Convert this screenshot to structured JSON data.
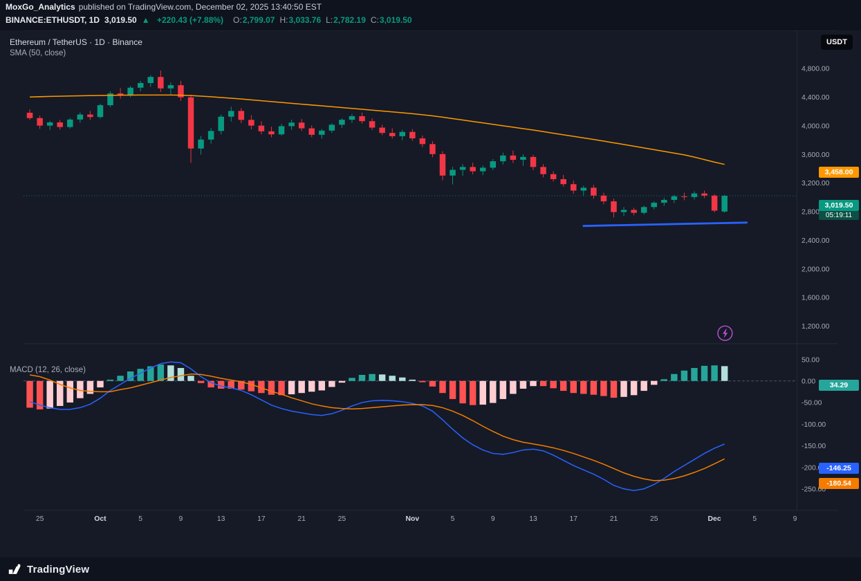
{
  "header": {
    "author": "MoxGo_Analytics",
    "published": "published on TradingView.com, December 02, 2025 13:40:50 EST"
  },
  "symbol_bar": {
    "symbol": "BINANCE:ETHUSDT, 1D",
    "last": "3,019.50",
    "direction": "▲",
    "change": "+220.43 (+7.88%)",
    "ohlc": [
      {
        "label": "O:",
        "value": "2,799.07"
      },
      {
        "label": "H:",
        "value": "3,033.76"
      },
      {
        "label": "L:",
        "value": "2,782.19"
      },
      {
        "label": "C:",
        "value": "3,019.50"
      }
    ]
  },
  "chart": {
    "title": "Ethereum / TetherUS · 1D · Binance",
    "sma_label": "SMA (50, close)",
    "macd_label": "MACD (12, 26, close)",
    "currency_button": "USDT",
    "badges": {
      "sma": "3,458.00",
      "last": "3,019.50",
      "countdown": "05:19:11",
      "macd_hist": "34.29",
      "macd_line": "-146.25",
      "macd_signal": "-180.54"
    },
    "colors": {
      "up": "#089981",
      "down": "#f23645",
      "sma": "#ff9800",
      "macd_line": "#2962ff",
      "signal_line": "#f57c00",
      "hist_pos_strong": "#26a69a",
      "hist_pos_weak": "#b2dfdb",
      "hist_neg_strong": "#ff5252",
      "hist_neg_weak": "#ffcdd2",
      "trendline": "#2962ff",
      "boost": "#c04fd4",
      "countdown_bg": "#0d4f44",
      "axis_text": "#a8adb8",
      "axis_text_major": "#d5d8dd"
    }
  },
  "chart_data": {
    "type": "candlestick",
    "title": "Ethereum / TetherUS · 1D · Binance",
    "interval": "1D",
    "legend": [
      "SMA (50, close)",
      "MACD (12, 26, close)"
    ],
    "ylim_price": [
      1050,
      4900
    ],
    "ylim_macd": [
      -280,
      60
    ],
    "grid": false,
    "last_price": 3019.5,
    "price_axis_ticks": [
      4800,
      4400,
      4000,
      3600,
      3200,
      2800,
      2400,
      2000,
      1600,
      1200
    ],
    "macd_axis_ticks": [
      50,
      0,
      -50,
      -100,
      -150,
      -200,
      -250
    ],
    "time_axis": [
      {
        "t": "25",
        "i": 1
      },
      {
        "t": "Oct",
        "i": 7,
        "major": true
      },
      {
        "t": "5",
        "i": 11
      },
      {
        "t": "9",
        "i": 15
      },
      {
        "t": "13",
        "i": 19
      },
      {
        "t": "17",
        "i": 23
      },
      {
        "t": "21",
        "i": 27
      },
      {
        "t": "25",
        "i": 31
      },
      {
        "t": "Nov",
        "i": 38,
        "major": true
      },
      {
        "t": "5",
        "i": 42
      },
      {
        "t": "9",
        "i": 46
      },
      {
        "t": "13",
        "i": 50
      },
      {
        "t": "17",
        "i": 54
      },
      {
        "t": "21",
        "i": 58
      },
      {
        "t": "25",
        "i": 62
      },
      {
        "t": "Dec",
        "i": 68,
        "major": true
      },
      {
        "t": "5",
        "i": 72
      },
      {
        "t": "9",
        "i": 76
      }
    ],
    "candles": [
      [
        4180,
        4225,
        4080,
        4105
      ],
      [
        4105,
        4140,
        3955,
        4000
      ],
      [
        4000,
        4065,
        3940,
        4045
      ],
      [
        4045,
        4080,
        3945,
        3980
      ],
      [
        3980,
        4105,
        3958,
        4085
      ],
      [
        4085,
        4185,
        4040,
        4155
      ],
      [
        4155,
        4205,
        4078,
        4120
      ],
      [
        4120,
        4305,
        4098,
        4285
      ],
      [
        4285,
        4480,
        4258,
        4450
      ],
      [
        4450,
        4525,
        4378,
        4420
      ],
      [
        4420,
        4555,
        4398,
        4530
      ],
      [
        4530,
        4625,
        4478,
        4595
      ],
      [
        4595,
        4705,
        4540,
        4680
      ],
      [
        4680,
        4770,
        4470,
        4520
      ],
      [
        4520,
        4605,
        4438,
        4565
      ],
      [
        4565,
        4625,
        4345,
        4395
      ],
      [
        4395,
        4430,
        3480,
        3680
      ],
      [
        3680,
        3855,
        3595,
        3805
      ],
      [
        3805,
        3965,
        3748,
        3925
      ],
      [
        3925,
        4155,
        3878,
        4125
      ],
      [
        4125,
        4265,
        4058,
        4205
      ],
      [
        4205,
        4245,
        4035,
        4080
      ],
      [
        4080,
        4145,
        3948,
        4000
      ],
      [
        4000,
        4060,
        3878,
        3920
      ],
      [
        3920,
        3985,
        3838,
        3878
      ],
      [
        3878,
        4025,
        3858,
        3992
      ],
      [
        3992,
        4082,
        3940,
        4042
      ],
      [
        4042,
        4092,
        3928,
        3962
      ],
      [
        3962,
        4002,
        3838,
        3872
      ],
      [
        3872,
        3952,
        3818,
        3930
      ],
      [
        3930,
        4032,
        3898,
        4012
      ],
      [
        4012,
        4102,
        3968,
        4082
      ],
      [
        4082,
        4162,
        4038,
        4132
      ],
      [
        4132,
        4182,
        4028,
        4062
      ],
      [
        4062,
        4102,
        3938,
        3972
      ],
      [
        3972,
        4012,
        3868,
        3898
      ],
      [
        3898,
        3962,
        3818,
        3852
      ],
      [
        3852,
        3942,
        3798,
        3912
      ],
      [
        3912,
        3952,
        3788,
        3822
      ],
      [
        3822,
        3862,
        3698,
        3742
      ],
      [
        3742,
        3782,
        3558,
        3602
      ],
      [
        3602,
        3642,
        3238,
        3302
      ],
      [
        3302,
        3422,
        3178,
        3382
      ],
      [
        3382,
        3462,
        3298,
        3422
      ],
      [
        3422,
        3482,
        3318,
        3362
      ],
      [
        3362,
        3442,
        3308,
        3412
      ],
      [
        3412,
        3532,
        3378,
        3502
      ],
      [
        3502,
        3622,
        3458,
        3582
      ],
      [
        3582,
        3652,
        3478,
        3522
      ],
      [
        3522,
        3602,
        3438,
        3562
      ],
      [
        3562,
        3592,
        3378,
        3422
      ],
      [
        3422,
        3462,
        3278,
        3322
      ],
      [
        3322,
        3362,
        3218,
        3252
      ],
      [
        3252,
        3312,
        3148,
        3182
      ],
      [
        3182,
        3232,
        3048,
        3092
      ],
      [
        3092,
        3162,
        3018,
        3132
      ],
      [
        3132,
        3172,
        2978,
        3022
      ],
      [
        3022,
        3062,
        2898,
        2942
      ],
      [
        2942,
        2982,
        2718,
        2792
      ],
      [
        2792,
        2862,
        2738,
        2822
      ],
      [
        2822,
        2852,
        2748,
        2782
      ],
      [
        2782,
        2882,
        2758,
        2862
      ],
      [
        2862,
        2942,
        2828,
        2922
      ],
      [
        2922,
        2992,
        2878,
        2962
      ],
      [
        2962,
        3032,
        2918,
        3012
      ],
      [
        3012,
        3062,
        2958,
        3002
      ],
      [
        3002,
        3082,
        2968,
        3052
      ],
      [
        3052,
        3092,
        2988,
        3022
      ],
      [
        3022,
        3042,
        2788,
        2812
      ],
      [
        2799.07,
        3033.76,
        2782.19,
        3019.5
      ]
    ],
    "sma50": [
      4400,
      4404,
      4408,
      4411,
      4414,
      4417,
      4419,
      4421,
      4423,
      4425,
      4426,
      4427,
      4428,
      4428,
      4427,
      4425,
      4420,
      4412,
      4403,
      4393,
      4383,
      4372,
      4360,
      4348,
      4336,
      4324,
      4312,
      4300,
      4288,
      4276,
      4264,
      4252,
      4240,
      4228,
      4216,
      4204,
      4192,
      4180,
      4166,
      4152,
      4136,
      4118,
      4098,
      4078,
      4058,
      4038,
      4018,
      3998,
      3978,
      3958,
      3938,
      3916,
      3894,
      3872,
      3850,
      3828,
      3806,
      3784,
      3760,
      3736,
      3712,
      3688,
      3664,
      3640,
      3616,
      3592,
      3560,
      3525,
      3490,
      3458
    ],
    "trendline": {
      "i1": 55,
      "p1": 2598,
      "i2": 71.2,
      "p2": 2645
    },
    "macd": {
      "line": [
        -48,
        -56,
        -62,
        -66,
        -66,
        -62,
        -54,
        -40,
        -22,
        -8,
        6,
        18,
        30,
        40,
        44,
        42,
        28,
        10,
        -4,
        -12,
        -16,
        -22,
        -32,
        -44,
        -56,
        -64,
        -70,
        -74,
        -78,
        -80,
        -76,
        -68,
        -58,
        -50,
        -46,
        -45,
        -46,
        -48,
        -52,
        -58,
        -70,
        -90,
        -112,
        -132,
        -148,
        -160,
        -168,
        -170,
        -166,
        -160,
        -158,
        -162,
        -172,
        -184,
        -196,
        -206,
        -216,
        -228,
        -242,
        -250,
        -254,
        -250,
        -240,
        -226,
        -210,
        -196,
        -182,
        -168,
        -156,
        -146.25
      ],
      "signal": [
        14,
        10,
        2,
        -8,
        -16,
        -22,
        -24,
        -25,
        -25,
        -20,
        -16,
        -10,
        -4,
        2,
        8,
        12,
        16,
        15,
        11,
        6,
        2,
        -2,
        -8,
        -16,
        -24,
        -31,
        -39,
        -46,
        -53,
        -58,
        -62,
        -64,
        -65,
        -64,
        -62,
        -60,
        -58,
        -56,
        -55,
        -55,
        -57,
        -62,
        -70,
        -80,
        -92,
        -105,
        -117,
        -128,
        -136,
        -142,
        -146,
        -150,
        -155,
        -161,
        -168,
        -176,
        -184,
        -193,
        -203,
        -213,
        -221,
        -227,
        -231,
        -230,
        -226,
        -220,
        -212,
        -203,
        -192,
        -180.54
      ]
    }
  },
  "footer": {
    "brand": "TradingView"
  }
}
